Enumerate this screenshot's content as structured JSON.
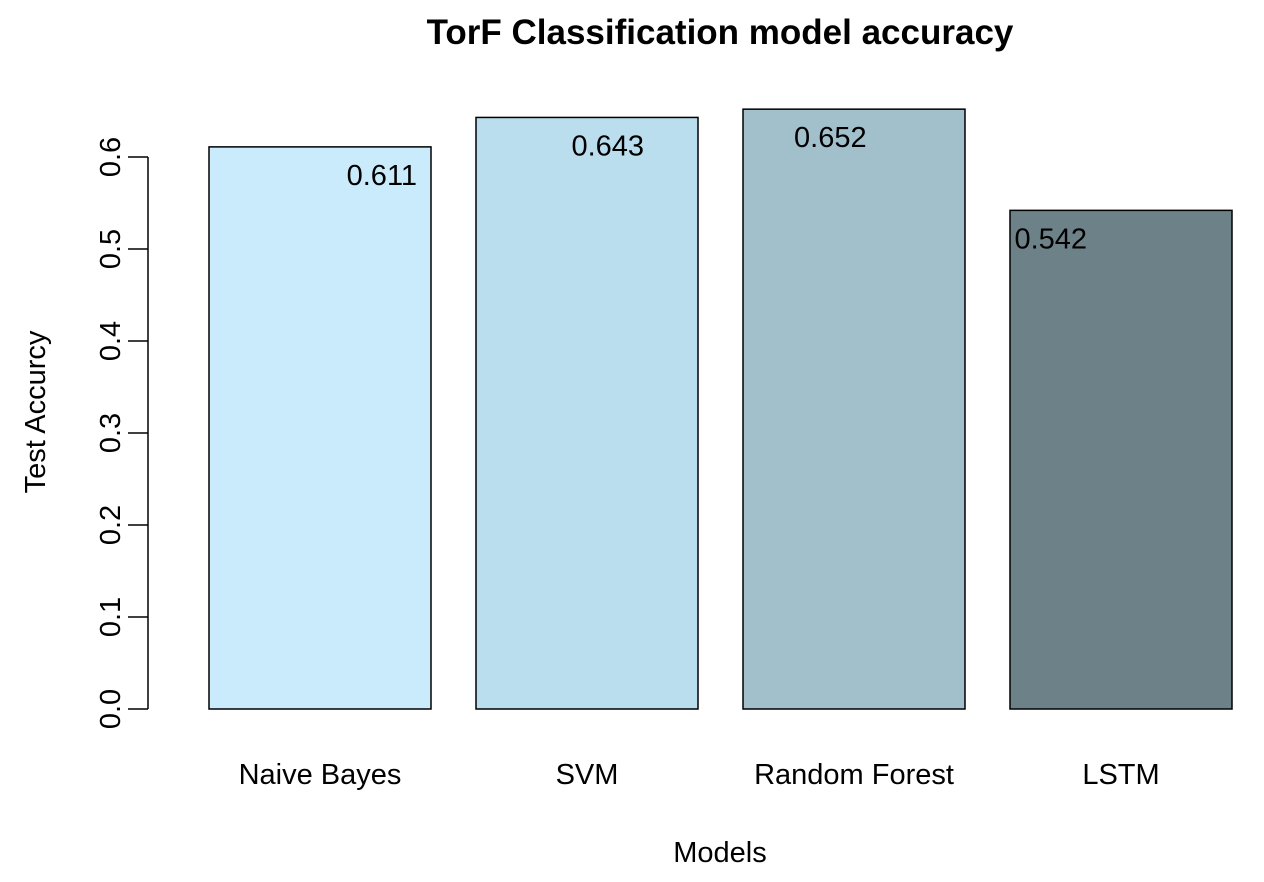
{
  "chart_data": {
    "type": "bar",
    "title": "TorF Classification model accuracy",
    "xlabel": "Models",
    "ylabel": "Test Accurcy",
    "categories": [
      "Naive Bayes",
      "SVM",
      "Random Forest",
      "LSTM"
    ],
    "values": [
      0.611,
      0.643,
      0.652,
      0.542
    ],
    "value_labels": [
      "0.611",
      "0.643",
      "0.652",
      "0.542"
    ],
    "colors": [
      "#c9ebfb",
      "#badeee",
      "#a2bfcc",
      "#6d8288"
    ],
    "yticks": [
      0.0,
      0.1,
      0.2,
      0.3,
      0.4,
      0.5,
      0.6
    ],
    "ytick_labels": [
      "0.0",
      "0.1",
      "0.2",
      "0.3",
      "0.4",
      "0.5",
      "0.6"
    ],
    "ylim": [
      0,
      0.6
    ],
    "grid": false,
    "legend": "none"
  }
}
